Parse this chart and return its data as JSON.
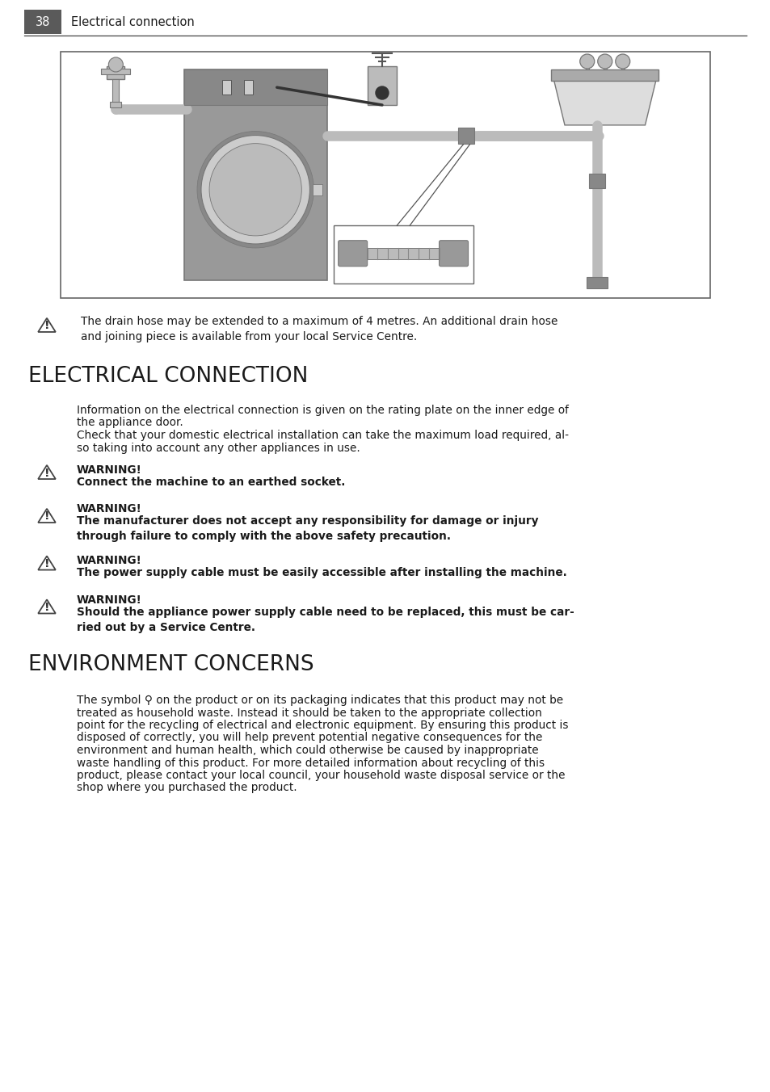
{
  "page_number": "38",
  "page_header": "Electrical connection",
  "background_color": "#ffffff",
  "header_bg_color": "#5a5a5a",
  "header_text_color": "#ffffff",
  "body_text_color": "#1a1a1a",
  "line_color": "#333333",
  "warning_note": "The drain hose may be extended to a maximum of 4 metres. An additional drain hose\nand joining piece is available from your local Service Centre.",
  "section1_title": "ELECTRICAL CONNECTION",
  "section1_intro_1": "Information on the electrical connection is given on the rating plate on the inner edge of",
  "section1_intro_2": "the appliance door.",
  "section1_intro_3": "Check that your domestic electrical installation can take the maximum load required, al-",
  "section1_intro_4": "so taking into account any other appliances in use.",
  "warnings": [
    {
      "label": "WARNING!",
      "text": "Connect the machine to an earthed socket.",
      "bold": true,
      "lines": 1
    },
    {
      "label": "WARNING!",
      "text": "The manufacturer does not accept any responsibility for damage or injury\nthrough failure to comply with the above safety precaution.",
      "bold": true,
      "lines": 2
    },
    {
      "label": "WARNING!",
      "text": "The power supply cable must be easily accessible after installing the machine.",
      "bold": true,
      "lines": 1
    },
    {
      "label": "WARNING!",
      "text": "Should the appliance power supply cable need to be replaced, this must be car-\nried out by a Service Centre.",
      "bold": true,
      "lines": 2
    }
  ],
  "section2_title": "ENVIRONMENT CONCERNS",
  "section2_lines": [
    "The symbol ⚲ on the product or on its packaging indicates that this product may not be",
    "treated as household waste. Instead it should be taken to the appropriate collection",
    "point for the recycling of electrical and electronic equipment. By ensuring this product is",
    "disposed of correctly, you will help prevent potential negative consequences for the",
    "environment and human health, which could otherwise be caused by inappropriate",
    "waste handling of this product. For more detailed information about recycling of this",
    "product, please contact your local council, your household waste disposal service or the",
    "shop where you purchased the product."
  ],
  "gray1": "#999999",
  "gray2": "#bbbbbb",
  "gray3": "#cccccc",
  "gray_dark": "#777777",
  "gray_mid": "#aaaaaa",
  "gray_light": "#dddddd"
}
